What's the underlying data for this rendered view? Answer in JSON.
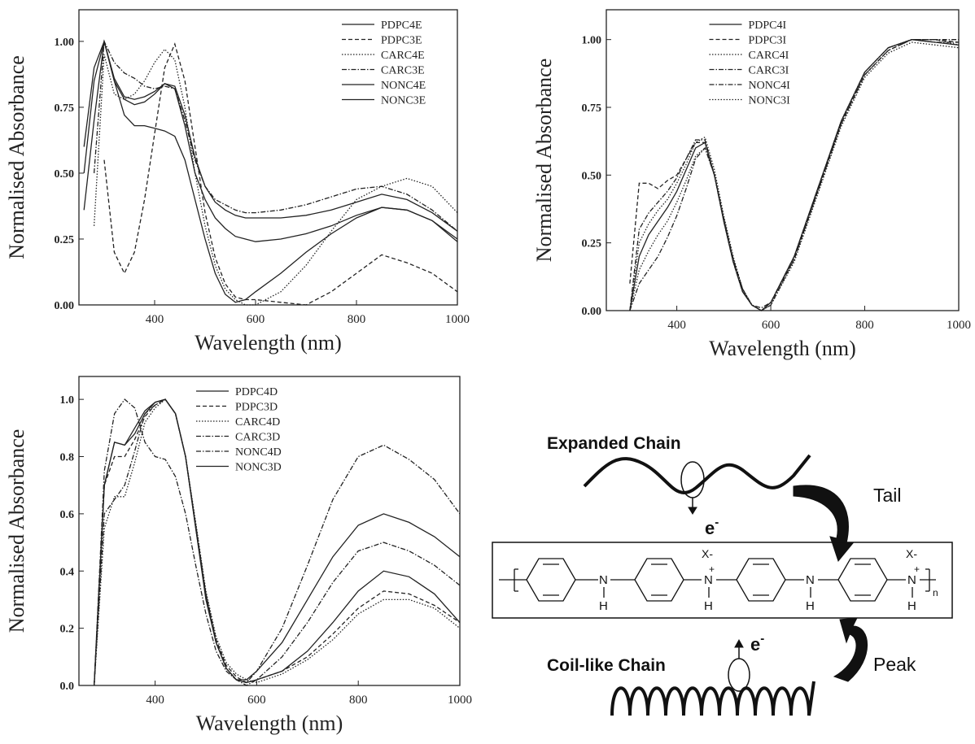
{
  "chart_data": [
    {
      "type": "line",
      "xlabel": "Wavelength (nm)",
      "ylabel": "Normalised Absorbance",
      "legend": "upper right",
      "xlim": [
        250,
        1000
      ],
      "ylim": [
        0,
        1.12
      ],
      "xticks": [
        400,
        600,
        800,
        1000
      ],
      "yticks": [
        {
          "value": 0,
          "label": "0.00"
        },
        {
          "value": 0.25,
          "label": "0.25"
        },
        {
          "value": 0.5,
          "label": "0.50"
        },
        {
          "value": 0.75,
          "label": "0.75"
        },
        {
          "value": 1,
          "label": "1.00"
        }
      ],
      "x": [
        260,
        280,
        300,
        320,
        340,
        360,
        380,
        400,
        420,
        440,
        460,
        480,
        500,
        520,
        540,
        560,
        580,
        600,
        650,
        700,
        750,
        800,
        850,
        900,
        950,
        1000
      ],
      "series": [
        {
          "name": "PDPC4E",
          "color": "#222",
          "dash": "solid",
          "values": [
            0.36,
            0.7,
            1.0,
            0.85,
            0.72,
            0.68,
            0.68,
            0.67,
            0.66,
            0.64,
            0.55,
            0.4,
            0.25,
            0.12,
            0.04,
            0.01,
            0.02,
            0.05,
            0.12,
            0.2,
            0.27,
            0.33,
            0.37,
            0.36,
            0.32,
            0.24
          ]
        },
        {
          "name": "PDPC3E",
          "color": "#222",
          "dash": "dashed",
          "values": [
            null,
            null,
            0.55,
            0.2,
            0.12,
            0.2,
            0.4,
            0.65,
            0.9,
            0.99,
            0.85,
            0.6,
            0.35,
            0.18,
            0.08,
            0.03,
            0.02,
            0.02,
            0.01,
            0.0,
            0.05,
            0.12,
            0.19,
            0.16,
            0.12,
            0.05
          ]
        },
        {
          "name": "CARC4E",
          "color": "#222",
          "dash": "dotted",
          "values": [
            null,
            0.3,
            0.95,
            0.8,
            0.78,
            0.8,
            0.85,
            0.92,
            0.97,
            0.93,
            0.75,
            0.5,
            0.3,
            0.15,
            0.06,
            0.02,
            0.0,
            0.0,
            0.05,
            0.15,
            0.28,
            0.4,
            0.45,
            0.48,
            0.45,
            0.35
          ]
        },
        {
          "name": "CARC3E",
          "color": "#222",
          "dash": "dashdot",
          "values": [
            null,
            0.5,
            1.0,
            0.92,
            0.88,
            0.86,
            0.83,
            0.82,
            0.83,
            0.82,
            0.7,
            0.55,
            0.45,
            0.4,
            0.38,
            0.36,
            0.35,
            0.35,
            0.36,
            0.38,
            0.41,
            0.44,
            0.45,
            0.42,
            0.36,
            0.28
          ]
        },
        {
          "name": "NONC4E",
          "color": "#222",
          "dash": "solid",
          "values": [
            0.5,
            0.85,
            1.0,
            0.85,
            0.78,
            0.76,
            0.77,
            0.8,
            0.84,
            0.82,
            0.68,
            0.5,
            0.4,
            0.33,
            0.29,
            0.26,
            0.25,
            0.24,
            0.25,
            0.27,
            0.3,
            0.34,
            0.37,
            0.36,
            0.32,
            0.25
          ]
        },
        {
          "name": "NONC3E",
          "color": "#222",
          "dash": "solid",
          "values": [
            0.6,
            0.9,
            1.0,
            0.86,
            0.79,
            0.78,
            0.79,
            0.81,
            0.84,
            0.83,
            0.72,
            0.56,
            0.45,
            0.39,
            0.36,
            0.34,
            0.33,
            0.33,
            0.33,
            0.34,
            0.36,
            0.39,
            0.42,
            0.4,
            0.35,
            0.28
          ]
        }
      ]
    },
    {
      "type": "line",
      "xlabel": "Wavelength (nm)",
      "ylabel": "Normalised Absorbance",
      "legend": "upper center",
      "xlim": [
        250,
        1000
      ],
      "ylim": [
        0,
        1.11
      ],
      "xticks": [
        400,
        600,
        800,
        1000
      ],
      "yticks": [
        {
          "value": 0,
          "label": "0.00"
        },
        {
          "value": 0.25,
          "label": "0.25"
        },
        {
          "value": 0.5,
          "label": "0.50"
        },
        {
          "value": 0.75,
          "label": "0.75"
        },
        {
          "value": 1,
          "label": "1.00"
        }
      ],
      "x": [
        300,
        320,
        340,
        360,
        380,
        400,
        420,
        440,
        460,
        480,
        500,
        520,
        540,
        560,
        580,
        600,
        650,
        700,
        750,
        800,
        850,
        900,
        950,
        1000
      ],
      "series": [
        {
          "name": "PDPC4I",
          "color": "#222",
          "dash": "solid",
          "values": [
            0.0,
            0.2,
            0.28,
            0.33,
            0.38,
            0.44,
            0.52,
            0.6,
            0.62,
            0.5,
            0.33,
            0.18,
            0.07,
            0.02,
            0.0,
            0.03,
            0.2,
            0.45,
            0.7,
            0.88,
            0.97,
            1.0,
            0.99,
            0.98
          ]
        },
        {
          "name": "PDPC3I",
          "color": "#222",
          "dash": "dashed",
          "values": [
            0.1,
            0.47,
            0.47,
            0.45,
            0.48,
            0.5,
            0.56,
            0.62,
            0.62,
            0.5,
            0.33,
            0.18,
            0.07,
            0.02,
            0.0,
            0.03,
            0.19,
            0.44,
            0.69,
            0.87,
            0.96,
            1.0,
            1.0,
            0.99
          ]
        },
        {
          "name": "CARC4I",
          "color": "#222",
          "dash": "dotted",
          "values": [
            0.0,
            0.15,
            0.22,
            0.28,
            0.33,
            0.4,
            0.48,
            0.57,
            0.6,
            0.5,
            0.34,
            0.19,
            0.08,
            0.02,
            0.0,
            0.02,
            0.18,
            0.43,
            0.68,
            0.86,
            0.95,
            0.99,
            0.98,
            0.97
          ]
        },
        {
          "name": "CARC3I",
          "color": "#222",
          "dash": "dashdot",
          "values": [
            0.0,
            0.3,
            0.36,
            0.4,
            0.44,
            0.49,
            0.56,
            0.63,
            0.63,
            0.5,
            0.33,
            0.18,
            0.07,
            0.02,
            0.01,
            0.03,
            0.2,
            0.45,
            0.7,
            0.88,
            0.97,
            1.0,
            1.0,
            1.0
          ]
        },
        {
          "name": "NONC4I",
          "color": "#222",
          "dash": "dashdot",
          "values": [
            0.0,
            0.1,
            0.15,
            0.2,
            0.27,
            0.35,
            0.45,
            0.56,
            0.6,
            0.5,
            0.34,
            0.19,
            0.08,
            0.02,
            0.0,
            0.02,
            0.19,
            0.44,
            0.69,
            0.87,
            0.96,
            1.0,
            0.99,
            0.99
          ]
        },
        {
          "name": "NONC3I",
          "color": "#222",
          "dash": "dotted",
          "values": [
            0.0,
            0.25,
            0.32,
            0.37,
            0.41,
            0.47,
            0.54,
            0.62,
            0.64,
            0.52,
            0.35,
            0.2,
            0.08,
            0.02,
            0.0,
            0.03,
            0.2,
            0.45,
            0.7,
            0.88,
            0.97,
            1.0,
            1.0,
            0.98
          ]
        }
      ]
    },
    {
      "type": "line",
      "xlabel": "Wavelength (nm)",
      "ylabel": "Normalised Absorbance",
      "legend": "upper center",
      "xlim": [
        250,
        1000
      ],
      "ylim": [
        0,
        1.08
      ],
      "xticks": [
        400,
        600,
        800,
        1000
      ],
      "yticks": [
        {
          "value": 0,
          "label": "0.0"
        },
        {
          "value": 0.2,
          "label": "0.2"
        },
        {
          "value": 0.4,
          "label": "0.4"
        },
        {
          "value": 0.6,
          "label": "0.6"
        },
        {
          "value": 0.8,
          "label": "0.8"
        },
        {
          "value": 1,
          "label": "1.0"
        }
      ],
      "x": [
        280,
        300,
        320,
        340,
        360,
        380,
        400,
        420,
        440,
        460,
        480,
        500,
        520,
        540,
        560,
        580,
        600,
        650,
        700,
        750,
        800,
        850,
        900,
        950,
        1000
      ],
      "series": [
        {
          "name": "PDPC4D",
          "color": "#222",
          "dash": "solid",
          "values": [
            0.0,
            0.7,
            0.85,
            0.84,
            0.88,
            0.95,
            0.99,
            1.0,
            0.95,
            0.8,
            0.55,
            0.3,
            0.15,
            0.06,
            0.02,
            0.01,
            0.02,
            0.05,
            0.12,
            0.22,
            0.33,
            0.4,
            0.38,
            0.32,
            0.22
          ]
        },
        {
          "name": "PDPC3D",
          "color": "#222",
          "dash": "dashed",
          "values": [
            0.0,
            0.7,
            0.8,
            0.8,
            0.86,
            0.94,
            0.98,
            1.0,
            0.95,
            0.8,
            0.56,
            0.32,
            0.16,
            0.07,
            0.03,
            0.01,
            0.02,
            0.05,
            0.1,
            0.18,
            0.27,
            0.33,
            0.32,
            0.28,
            0.22
          ]
        },
        {
          "name": "CARC4D",
          "color": "#222",
          "dash": "dotted",
          "values": [
            0.0,
            0.55,
            0.66,
            0.66,
            0.78,
            0.92,
            0.97,
            1.0,
            0.95,
            0.8,
            0.57,
            0.33,
            0.17,
            0.08,
            0.04,
            0.02,
            0.01,
            0.04,
            0.09,
            0.16,
            0.25,
            0.3,
            0.3,
            0.27,
            0.2
          ]
        },
        {
          "name": "CARC3D",
          "color": "#222",
          "dash": "dashdot",
          "values": [
            0.0,
            0.6,
            0.65,
            0.7,
            0.82,
            0.95,
            0.98,
            1.0,
            0.95,
            0.8,
            0.56,
            0.32,
            0.15,
            0.06,
            0.02,
            0.0,
            0.02,
            0.1,
            0.22,
            0.36,
            0.47,
            0.5,
            0.47,
            0.42,
            0.35
          ]
        },
        {
          "name": "NONC4D",
          "color": "#222",
          "dash": "dashdot",
          "values": [
            0.0,
            0.75,
            0.95,
            1.0,
            0.97,
            0.85,
            0.8,
            0.79,
            0.73,
            0.6,
            0.42,
            0.25,
            0.12,
            0.05,
            0.02,
            0.01,
            0.05,
            0.2,
            0.42,
            0.65,
            0.8,
            0.84,
            0.79,
            0.72,
            0.6
          ]
        },
        {
          "name": "NONC3D",
          "color": "#222",
          "dash": "solid",
          "values": [
            0.0,
            0.7,
            0.85,
            0.84,
            0.9,
            0.96,
            0.99,
            1.0,
            0.95,
            0.8,
            0.55,
            0.31,
            0.15,
            0.06,
            0.02,
            0.02,
            0.05,
            0.15,
            0.3,
            0.45,
            0.56,
            0.6,
            0.57,
            0.52,
            0.45
          ]
        }
      ]
    }
  ],
  "diagram": {
    "expanded": "Expanded Chain",
    "coil": "Coil-like Chain",
    "tail": "Tail",
    "peak": "Peak",
    "electron": [
      "e",
      "e"
    ],
    "electron_charge": [
      "-",
      "-"
    ],
    "polymer": {
      "nitrogen": [
        "N",
        "N",
        "N",
        "N"
      ],
      "hydrogen": [
        "H",
        "H",
        "H",
        "H"
      ],
      "counterion": [
        "X-",
        "X-"
      ],
      "charge": [
        "+",
        "+"
      ],
      "repeat": "n"
    }
  }
}
